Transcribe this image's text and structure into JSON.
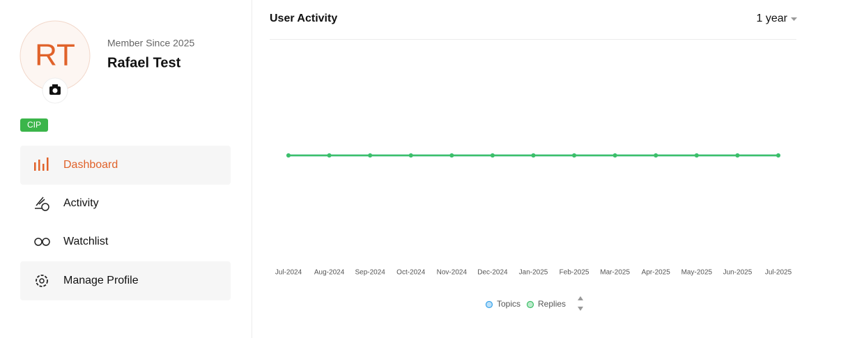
{
  "profile": {
    "initials": "RT",
    "member_since": "Member Since 2025",
    "name": "Rafael Test",
    "badge": "CIP"
  },
  "menu": [
    {
      "label": "Dashboard",
      "active": true
    },
    {
      "label": "Activity",
      "active": false
    },
    {
      "label": "Watchlist",
      "active": false
    },
    {
      "label": "Manage Profile",
      "active": false
    }
  ],
  "chart_data": {
    "type": "line",
    "title": "User Activity",
    "period": "1 year",
    "x": [
      "Jul-2024",
      "Aug-2024",
      "Sep-2024",
      "Oct-2024",
      "Nov-2024",
      "Dec-2024",
      "Jan-2025",
      "Feb-2025",
      "Mar-2025",
      "Apr-2025",
      "May-2025",
      "Jun-2025",
      "Jul-2025"
    ],
    "series": [
      {
        "name": "Topics",
        "color": "#36a2eb",
        "values": [
          0,
          0,
          0,
          0,
          0,
          0,
          0,
          0,
          0,
          0,
          0,
          0,
          0
        ]
      },
      {
        "name": "Replies",
        "color": "#3cc068",
        "values": [
          0,
          0,
          0,
          0,
          0,
          0,
          0,
          0,
          0,
          0,
          0,
          0,
          0
        ]
      }
    ]
  }
}
